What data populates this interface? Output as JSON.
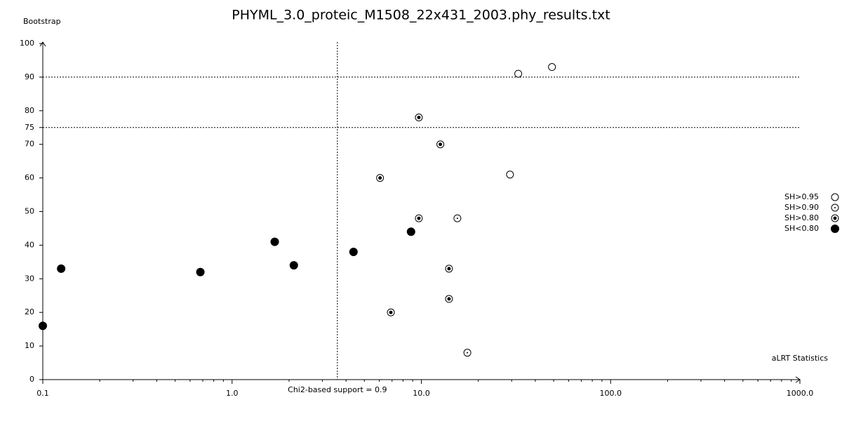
{
  "chart_data": {
    "type": "scatter",
    "title": "PHYML_3.0_proteic_M1508_22x431_2003.phy_results.txt",
    "x_label": "aLRT Statistics",
    "y_label": "Bootstrap",
    "xscale": "log",
    "xlim": [
      0.1,
      1000
    ],
    "ylim": [
      0,
      100
    ],
    "xticks": [
      0.1,
      {
        "value": 1,
        "label": "1.0"
      },
      {
        "value": 10,
        "label": "10.0"
      },
      {
        "value": 100,
        "label": "100.0"
      },
      {
        "value": 1000,
        "label": "1000.0"
      }
    ],
    "xminor_ticks": [
      0.2,
      0.3,
      0.4,
      0.5,
      0.6,
      0.7,
      0.8,
      0.9,
      2,
      3,
      4,
      5,
      6,
      7,
      8,
      9,
      20,
      30,
      40,
      50,
      60,
      70,
      80,
      90,
      200,
      300,
      400,
      500,
      600,
      700,
      800,
      900
    ],
    "yticks": [
      0,
      10,
      20,
      30,
      40,
      50,
      60,
      70,
      75,
      80,
      90,
      100
    ],
    "hlines": [
      75,
      90
    ],
    "vline": {
      "value": 3.6,
      "label": "Chi2-based support = 0.9"
    },
    "series": [
      {
        "name": "SH>0.95",
        "marker": "open",
        "x": [
          32.5,
          49.0,
          29.4
        ],
        "values": [
          91,
          93,
          61
        ]
      },
      {
        "name": "SH>0.90",
        "marker": "dot",
        "x": [
          15.5,
          17.5
        ],
        "values": [
          48,
          8
        ]
      },
      {
        "name": "SH>0.80",
        "marker": "bullseye",
        "x": [
          9.7,
          12.6,
          6.05,
          9.7,
          14.0,
          14.0,
          6.9
        ],
        "values": [
          78,
          70,
          60,
          48,
          33,
          24,
          20
        ]
      },
      {
        "name": "SH<0.80",
        "marker": "filled",
        "x": [
          0.1,
          0.125,
          0.68,
          1.68,
          2.12,
          4.38,
          8.82
        ],
        "values": [
          16,
          33,
          32,
          41,
          34,
          38,
          44
        ]
      }
    ]
  }
}
